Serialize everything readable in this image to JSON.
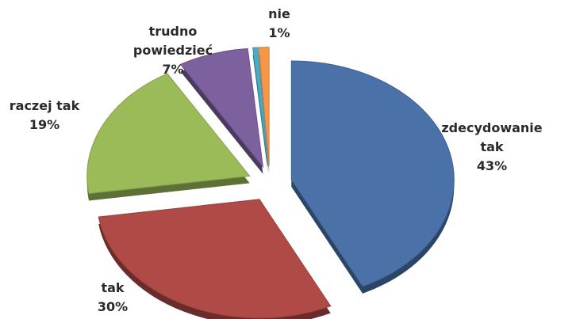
{
  "chart_data": {
    "type": "pie",
    "categories": [
      "zdecydowanie tak",
      "tak",
      "raczej tak",
      "trudno powiedzieć",
      null,
      "nie"
    ],
    "values": [
      43,
      30,
      19,
      7,
      0.5,
      1
    ],
    "value_labels": [
      "43%",
      "30%",
      "19%",
      "7%",
      null,
      "1%"
    ],
    "colors": [
      "#4a72a8",
      "#b04a47",
      "#9bbb59",
      "#7d619e",
      "#4bacc6",
      "#f79646"
    ]
  }
}
